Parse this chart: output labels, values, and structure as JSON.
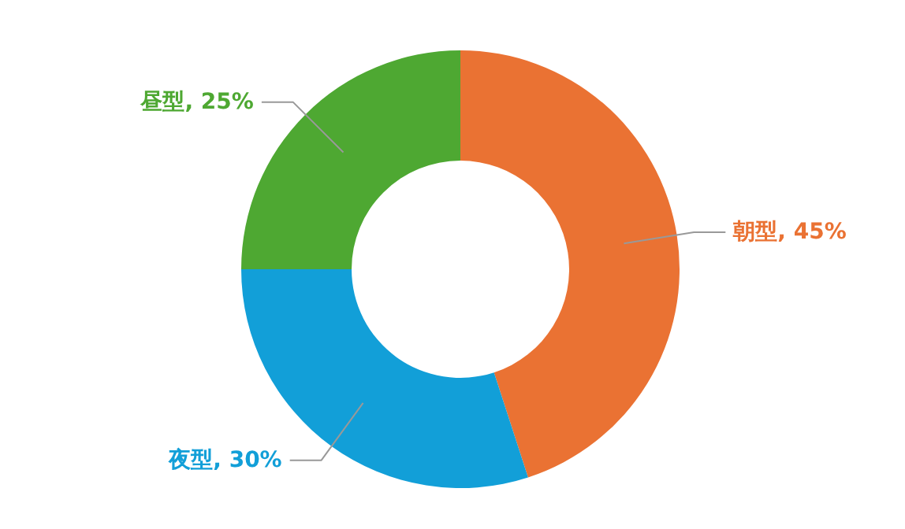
{
  "chart_data": {
    "type": "donut",
    "categories": [
      "朝型",
      "夜型",
      "昼型"
    ],
    "values": [
      45,
      30,
      25
    ],
    "colors": [
      "#ea7233",
      "#129fd8",
      "#4ea832"
    ],
    "value_labels": [
      "45%",
      "30%",
      "25%"
    ]
  }
}
